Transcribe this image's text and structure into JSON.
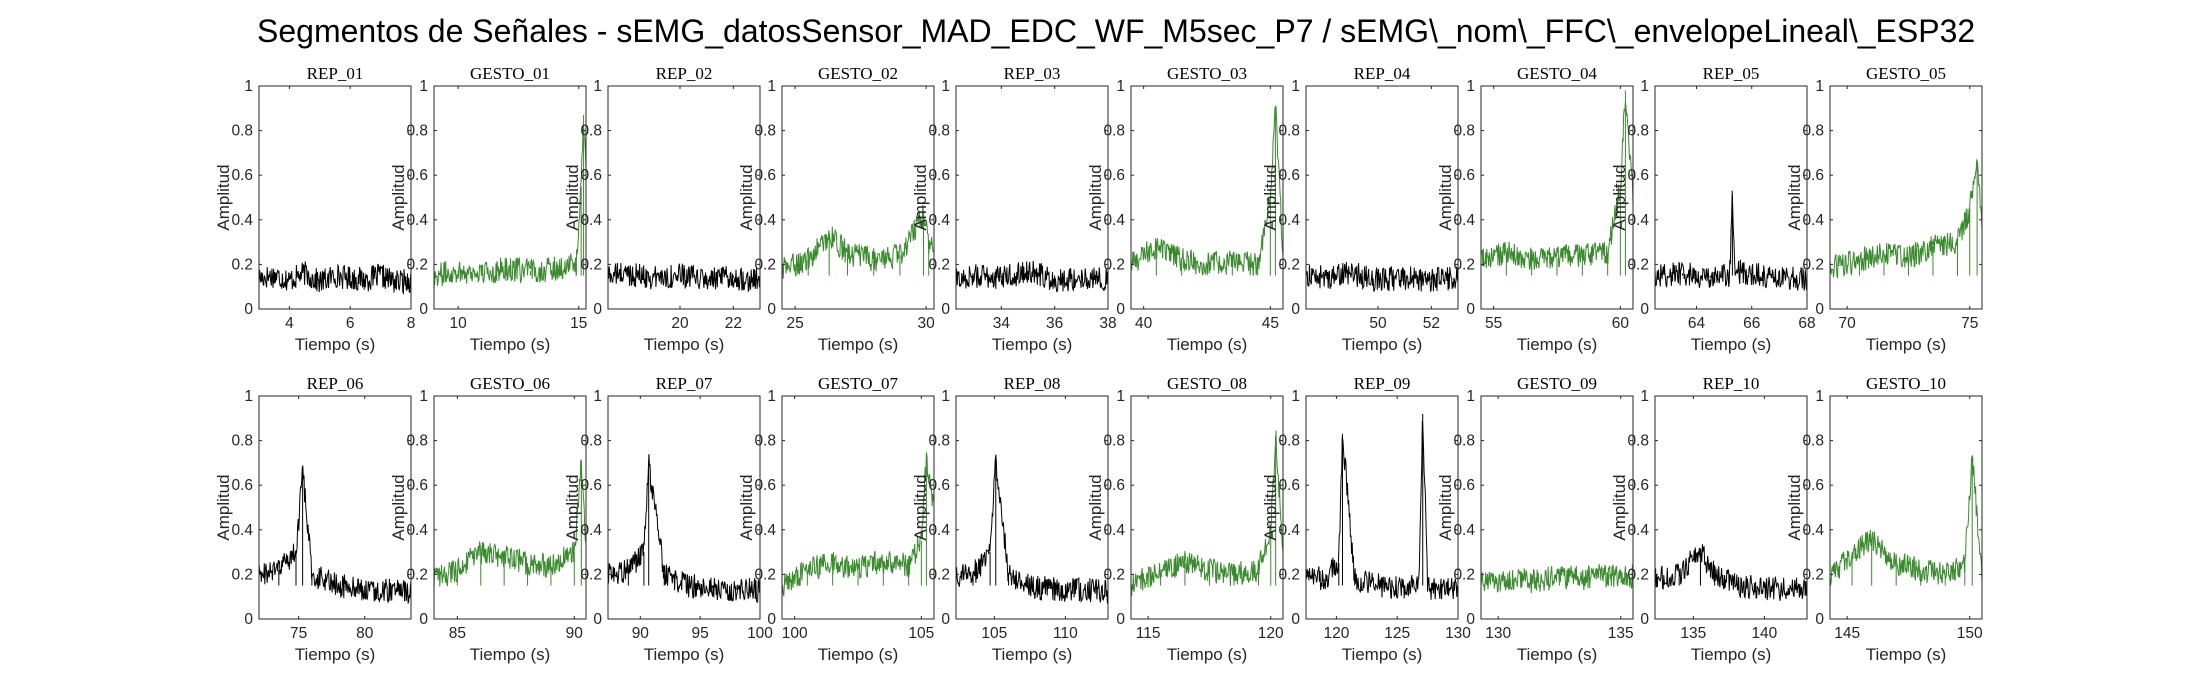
{
  "title": "Segmentos de Señales - sEMG_datosSensor_MAD_EDC_WF_M5sec_P7 / sEMG\\_nom\\_FFC\\_envelopeLineal\\_ESP32",
  "colors": {
    "rep": "#000000",
    "gesto": "#3a8a2e",
    "axis": "#262626"
  },
  "chart_data": [
    {
      "type": "line",
      "title": "REP_01",
      "xlabel": "Tiempo (s)",
      "ylabel": "Amplitud",
      "xlim": [
        3,
        8
      ],
      "ylim": [
        0,
        1
      ],
      "xticks": [
        4,
        6,
        8
      ],
      "yticks": [
        0,
        0.2,
        0.4,
        0.6,
        0.8,
        1
      ],
      "series": [
        {
          "kind": "rep",
          "x": [
            3,
            3.5,
            4,
            4.5,
            5,
            5.5,
            6,
            6.5,
            7,
            7.5,
            8
          ],
          "y": [
            0.14,
            0.15,
            0.13,
            0.16,
            0.12,
            0.15,
            0.14,
            0.13,
            0.15,
            0.12,
            0.13
          ]
        }
      ]
    },
    {
      "type": "line",
      "title": "GESTO_01",
      "xlabel": "Tiempo (s)",
      "ylabel": "Amplitud",
      "xlim": [
        9,
        15.3
      ],
      "ylim": [
        0,
        1
      ],
      "xticks": [
        10,
        15
      ],
      "yticks": [
        0,
        0.2,
        0.4,
        0.6,
        0.8,
        1
      ],
      "series": [
        {
          "kind": "gesto",
          "x": [
            9,
            10,
            11,
            12,
            13,
            14,
            14.9,
            15.1,
            15.2,
            15.3
          ],
          "y": [
            0.15,
            0.17,
            0.16,
            0.18,
            0.17,
            0.18,
            0.2,
            0.55,
            0.87,
            0.6
          ]
        }
      ]
    },
    {
      "type": "line",
      "title": "REP_02",
      "xlabel": "Tiempo (s)",
      "ylabel": "Amplitud",
      "xlim": [
        17.3,
        23
      ],
      "ylim": [
        0,
        1
      ],
      "xticks": [
        20,
        22
      ],
      "yticks": [
        0,
        0.2,
        0.4,
        0.6,
        0.8,
        1
      ],
      "series": [
        {
          "kind": "rep",
          "x": [
            17.3,
            18,
            19,
            20,
            21,
            22,
            23
          ],
          "y": [
            0.15,
            0.16,
            0.14,
            0.15,
            0.13,
            0.14,
            0.13
          ]
        }
      ]
    },
    {
      "type": "line",
      "title": "GESTO_02",
      "xlabel": "Tiempo (s)",
      "ylabel": "Amplitud",
      "xlim": [
        24.5,
        30.3
      ],
      "ylim": [
        0,
        1
      ],
      "xticks": [
        25,
        30
      ],
      "yticks": [
        0,
        0.2,
        0.4,
        0.6,
        0.8,
        1
      ],
      "series": [
        {
          "kind": "gesto",
          "x": [
            24.5,
            25.5,
            26.3,
            27,
            28,
            29,
            29.9,
            30.1,
            30.3
          ],
          "y": [
            0.18,
            0.22,
            0.33,
            0.25,
            0.22,
            0.24,
            0.43,
            0.3,
            0.25
          ]
        }
      ]
    },
    {
      "type": "line",
      "title": "REP_03",
      "xlabel": "Tiempo (s)",
      "ylabel": "Amplitud",
      "xlim": [
        32.3,
        38
      ],
      "ylim": [
        0,
        1
      ],
      "xticks": [
        34,
        36,
        38
      ],
      "yticks": [
        0,
        0.2,
        0.4,
        0.6,
        0.8,
        1
      ],
      "series": [
        {
          "kind": "rep",
          "x": [
            32.3,
            33,
            34,
            35,
            36,
            37,
            38
          ],
          "y": [
            0.13,
            0.15,
            0.14,
            0.17,
            0.13,
            0.14,
            0.13
          ]
        }
      ]
    },
    {
      "type": "line",
      "title": "GESTO_03",
      "xlabel": "Tiempo (s)",
      "ylabel": "Amplitud",
      "xlim": [
        39.5,
        45.5
      ],
      "ylim": [
        0,
        1
      ],
      "xticks": [
        40,
        45
      ],
      "yticks": [
        0,
        0.2,
        0.4,
        0.6,
        0.8,
        1
      ],
      "series": [
        {
          "kind": "gesto",
          "x": [
            39.5,
            40.5,
            41.5,
            42.5,
            43.5,
            44.5,
            45,
            45.2,
            45.5
          ],
          "y": [
            0.2,
            0.28,
            0.22,
            0.2,
            0.21,
            0.2,
            0.5,
            0.91,
            0.25
          ]
        }
      ]
    },
    {
      "type": "line",
      "title": "REP_04",
      "xlabel": "Tiempo (s)",
      "ylabel": "Amplitud",
      "xlim": [
        47.3,
        53
      ],
      "ylim": [
        0,
        1
      ],
      "xticks": [
        50,
        52
      ],
      "yticks": [
        0,
        0.2,
        0.4,
        0.6,
        0.8,
        1
      ],
      "series": [
        {
          "kind": "rep",
          "x": [
            47.3,
            48,
            49,
            50,
            51,
            52,
            53
          ],
          "y": [
            0.15,
            0.14,
            0.16,
            0.13,
            0.14,
            0.13,
            0.14
          ]
        }
      ]
    },
    {
      "type": "line",
      "title": "GESTO_04",
      "xlabel": "Tiempo (s)",
      "ylabel": "Amplitud",
      "xlim": [
        54.5,
        60.5
      ],
      "ylim": [
        0,
        1
      ],
      "xticks": [
        55,
        60
      ],
      "yticks": [
        0,
        0.2,
        0.4,
        0.6,
        0.8,
        1
      ],
      "series": [
        {
          "kind": "gesto",
          "x": [
            54.5,
            55.5,
            56.5,
            57.5,
            58.5,
            59.5,
            60,
            60.2,
            60.5
          ],
          "y": [
            0.22,
            0.25,
            0.22,
            0.23,
            0.24,
            0.25,
            0.55,
            0.98,
            0.5
          ]
        }
      ]
    },
    {
      "type": "line",
      "title": "REP_05",
      "xlabel": "Tiempo (s)",
      "ylabel": "Amplitud",
      "xlim": [
        62.5,
        68
      ],
      "ylim": [
        0,
        1
      ],
      "xticks": [
        64,
        66,
        68
      ],
      "yticks": [
        0,
        0.2,
        0.4,
        0.6,
        0.8,
        1
      ],
      "series": [
        {
          "kind": "rep",
          "x": [
            62.5,
            63.5,
            64.5,
            65.2,
            65.3,
            65.4,
            66.5,
            67.5,
            68
          ],
          "y": [
            0.15,
            0.16,
            0.14,
            0.15,
            0.51,
            0.17,
            0.15,
            0.14,
            0.13
          ]
        }
      ]
    },
    {
      "type": "line",
      "title": "GESTO_05",
      "xlabel": "Tiempo (s)",
      "ylabel": "Amplitud",
      "xlim": [
        69.3,
        75.5
      ],
      "ylim": [
        0,
        1
      ],
      "xticks": [
        70,
        75
      ],
      "yticks": [
        0,
        0.2,
        0.4,
        0.6,
        0.8,
        1
      ],
      "series": [
        {
          "kind": "gesto",
          "x": [
            69.3,
            70.5,
            71.5,
            72.5,
            73.5,
            74.5,
            75,
            75.3,
            75.5
          ],
          "y": [
            0.18,
            0.22,
            0.25,
            0.23,
            0.28,
            0.3,
            0.45,
            0.66,
            0.4
          ]
        }
      ]
    },
    {
      "type": "line",
      "title": "REP_06",
      "xlabel": "Tiempo (s)",
      "ylabel": "Amplitud",
      "xlim": [
        72,
        83.5
      ],
      "ylim": [
        0,
        1
      ],
      "xticks": [
        75,
        80
      ],
      "yticks": [
        0,
        0.2,
        0.4,
        0.6,
        0.8,
        1
      ],
      "series": [
        {
          "kind": "rep",
          "x": [
            72,
            73.5,
            74.8,
            75.3,
            76,
            78,
            80,
            82,
            83.5
          ],
          "y": [
            0.2,
            0.22,
            0.3,
            0.66,
            0.2,
            0.15,
            0.13,
            0.13,
            0.12
          ]
        }
      ]
    },
    {
      "type": "line",
      "title": "GESTO_06",
      "xlabel": "Tiempo (s)",
      "ylabel": "Amplitud",
      "xlim": [
        84,
        90.5
      ],
      "ylim": [
        0,
        1
      ],
      "xticks": [
        85,
        90
      ],
      "yticks": [
        0,
        0.2,
        0.4,
        0.6,
        0.8,
        1
      ],
      "series": [
        {
          "kind": "gesto",
          "x": [
            84,
            85,
            86,
            87,
            88,
            89,
            90,
            90.3,
            90.5
          ],
          "y": [
            0.18,
            0.22,
            0.3,
            0.28,
            0.25,
            0.24,
            0.3,
            0.7,
            0.35
          ]
        }
      ]
    },
    {
      "type": "line",
      "title": "REP_07",
      "xlabel": "Tiempo (s)",
      "ylabel": "Amplitud",
      "xlim": [
        87.3,
        100
      ],
      "ylim": [
        0,
        1
      ],
      "xticks": [
        90,
        95,
        100
      ],
      "yticks": [
        0,
        0.2,
        0.4,
        0.6,
        0.8,
        1
      ],
      "series": [
        {
          "kind": "rep",
          "x": [
            87.3,
            89,
            90.3,
            90.7,
            92,
            94,
            96,
            98
          ],
          "y": [
            0.2,
            0.22,
            0.3,
            0.7,
            0.2,
            0.15,
            0.14,
            0.13
          ]
        }
      ]
    },
    {
      "type": "line",
      "title": "GESTO_07",
      "xlabel": "Tiempo (s)",
      "ylabel": "Amplitud",
      "xlim": [
        99.5,
        105.5
      ],
      "ylim": [
        0,
        1
      ],
      "xticks": [
        100,
        105
      ],
      "yticks": [
        0,
        0.2,
        0.4,
        0.6,
        0.8,
        1
      ],
      "series": [
        {
          "kind": "gesto",
          "x": [
            99.5,
            100.5,
            101.5,
            102.5,
            103.5,
            104.5,
            105,
            105.2,
            105.5
          ],
          "y": [
            0.15,
            0.22,
            0.25,
            0.23,
            0.26,
            0.24,
            0.35,
            0.72,
            0.5
          ]
        }
      ]
    },
    {
      "type": "line",
      "title": "REP_08",
      "xlabel": "Tiempo (s)",
      "ylabel": "Amplitud",
      "xlim": [
        102.3,
        113
      ],
      "ylim": [
        0,
        1
      ],
      "xticks": [
        105,
        110
      ],
      "yticks": [
        0,
        0.2,
        0.4,
        0.6,
        0.8,
        1
      ],
      "series": [
        {
          "kind": "rep",
          "x": [
            102.3,
            103.5,
            104.7,
            105.1,
            106,
            108,
            110,
            112,
            113
          ],
          "y": [
            0.2,
            0.2,
            0.3,
            0.72,
            0.2,
            0.14,
            0.13,
            0.13,
            0.12
          ]
        }
      ]
    },
    {
      "type": "line",
      "title": "GESTO_08",
      "xlabel": "Tiempo (s)",
      "ylabel": "Amplitud",
      "xlim": [
        114.3,
        120.5
      ],
      "ylim": [
        0,
        1
      ],
      "xticks": [
        115,
        120
      ],
      "yticks": [
        0,
        0.2,
        0.4,
        0.6,
        0.8,
        1
      ],
      "series": [
        {
          "kind": "gesto",
          "x": [
            114.3,
            115.5,
            116.5,
            117.5,
            118.5,
            119.5,
            120,
            120.2,
            120.5
          ],
          "y": [
            0.15,
            0.22,
            0.25,
            0.22,
            0.2,
            0.22,
            0.4,
            0.82,
            0.3
          ]
        }
      ]
    },
    {
      "type": "line",
      "title": "REP_09",
      "xlabel": "Tiempo (s)",
      "ylabel": "Amplitud",
      "xlim": [
        117.5,
        130
      ],
      "ylim": [
        0,
        1
      ],
      "xticks": [
        120,
        125,
        130
      ],
      "yticks": [
        0,
        0.2,
        0.4,
        0.6,
        0.8,
        1
      ],
      "series": [
        {
          "kind": "rep",
          "x": [
            117.5,
            119,
            120.2,
            120.5,
            121.5,
            123.5,
            125.5,
            126.8,
            127.1,
            127.5,
            128
          ],
          "y": [
            0.2,
            0.18,
            0.25,
            0.83,
            0.18,
            0.15,
            0.14,
            0.15,
            0.92,
            0.15,
            0.13
          ]
        }
      ]
    },
    {
      "type": "line",
      "title": "GESTO_09",
      "xlabel": "Tiempo (s)",
      "ylabel": "Amplitud",
      "xlim": [
        129.3,
        135.5
      ],
      "ylim": [
        0,
        1
      ],
      "xticks": [
        130,
        135
      ],
      "yticks": [
        0,
        0.2,
        0.4,
        0.6,
        0.8,
        1
      ],
      "series": [
        {
          "kind": "gesto",
          "x": [
            129.3,
            130.5,
            131.5,
            132.5,
            133.5,
            134.5,
            135.5
          ],
          "y": [
            0.16,
            0.18,
            0.17,
            0.19,
            0.18,
            0.2,
            0.19
          ]
        }
      ]
    },
    {
      "type": "line",
      "title": "REP_10",
      "xlabel": "Tiempo (s)",
      "ylabel": "Amplitud",
      "xlim": [
        132.3,
        143
      ],
      "ylim": [
        0,
        1
      ],
      "xticks": [
        135,
        140
      ],
      "yticks": [
        0,
        0.2,
        0.4,
        0.6,
        0.8,
        1
      ],
      "series": [
        {
          "kind": "rep",
          "x": [
            132.3,
            134,
            135.5,
            136.5,
            138,
            140,
            142,
            143
          ],
          "y": [
            0.18,
            0.2,
            0.3,
            0.2,
            0.15,
            0.14,
            0.13,
            0.13
          ]
        }
      ]
    },
    {
      "type": "line",
      "title": "GESTO_10",
      "xlabel": "Tiempo (s)",
      "ylabel": "Amplitud",
      "xlim": [
        144.3,
        150.5
      ],
      "ylim": [
        0,
        1
      ],
      "xticks": [
        145,
        150
      ],
      "yticks": [
        0,
        0.2,
        0.4,
        0.6,
        0.8,
        1
      ],
      "series": [
        {
          "kind": "gesto",
          "x": [
            144.3,
            145.2,
            146,
            147,
            148,
            149,
            149.8,
            150.1,
            150.5
          ],
          "y": [
            0.18,
            0.3,
            0.35,
            0.25,
            0.22,
            0.2,
            0.25,
            0.73,
            0.2
          ]
        }
      ]
    }
  ]
}
